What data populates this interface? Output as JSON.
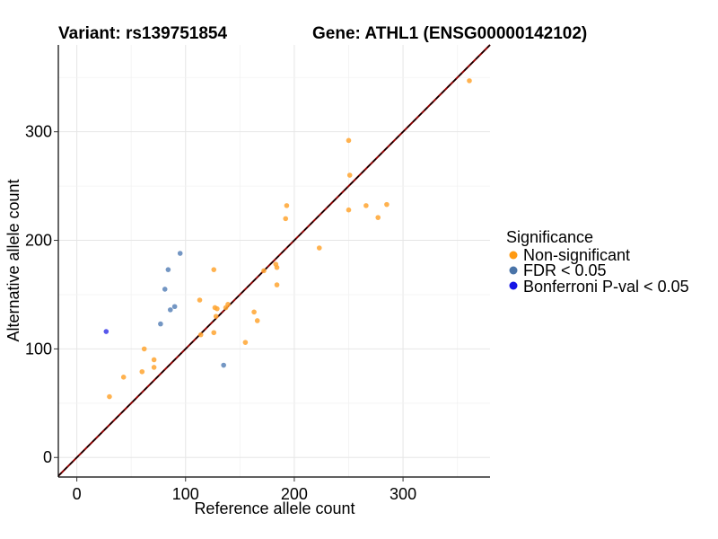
{
  "chart_data": {
    "type": "scatter",
    "title_left": "Variant: rs139751854",
    "title_right": "Gene: ATHL1 (ENSG00000142102)",
    "xlabel": "Reference allele count",
    "ylabel": "Alternative allele count",
    "xlim": [
      -17,
      380
    ],
    "ylim": [
      -18,
      380
    ],
    "x_ticks": [
      0,
      100,
      200,
      300
    ],
    "y_ticks": [
      0,
      100,
      200,
      300
    ],
    "grid": true,
    "diagonal": {
      "slope": 1,
      "intercept": 0,
      "colors": [
        "#8b0000",
        "#000000"
      ],
      "style": "dashed"
    },
    "legend": {
      "title": "Significance",
      "position": "right",
      "entries": [
        {
          "label": "Non-significant",
          "color": "#ff9a12"
        },
        {
          "label": "FDR < 0.05",
          "color": "#4a74a8"
        },
        {
          "label": "Bonferroni P-val < 0.05",
          "color": "#1515e6"
        }
      ]
    },
    "series": [
      {
        "name": "Non-significant",
        "color": "#ffa530",
        "points": [
          [
            30,
            56
          ],
          [
            43,
            74
          ],
          [
            60,
            79
          ],
          [
            62,
            100
          ],
          [
            71,
            83
          ],
          [
            71,
            90
          ],
          [
            113,
            145
          ],
          [
            114,
            113
          ],
          [
            126,
            173
          ],
          [
            126,
            115
          ],
          [
            127,
            138
          ],
          [
            128,
            130
          ],
          [
            129,
            137
          ],
          [
            137,
            138
          ],
          [
            139,
            141
          ],
          [
            155,
            106
          ],
          [
            163,
            134
          ],
          [
            166,
            126
          ],
          [
            172,
            172
          ],
          [
            183,
            178
          ],
          [
            184,
            159
          ],
          [
            184,
            175
          ],
          [
            192,
            220
          ],
          [
            193,
            232
          ],
          [
            223,
            193
          ],
          [
            250,
            292
          ],
          [
            250,
            228
          ],
          [
            251,
            260
          ],
          [
            266,
            232
          ],
          [
            277,
            221
          ],
          [
            285,
            233
          ],
          [
            361,
            347
          ]
        ]
      },
      {
        "name": "FDR < 0.05",
        "color": "#5a84b8",
        "points": [
          [
            77,
            123
          ],
          [
            81,
            155
          ],
          [
            84,
            173
          ],
          [
            86,
            136
          ],
          [
            90,
            139
          ],
          [
            95,
            188
          ],
          [
            135,
            85
          ]
        ]
      },
      {
        "name": "Bonferroni P-val < 0.05",
        "color": "#3a3ae8",
        "points": [
          [
            27,
            116
          ]
        ]
      }
    ]
  }
}
